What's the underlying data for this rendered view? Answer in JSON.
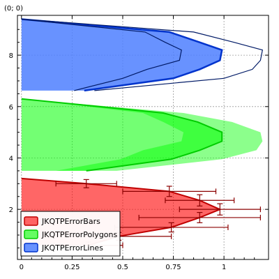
{
  "corner_label": "(0; 0)",
  "chart_data": {
    "type": "area",
    "title": "",
    "xlabel": "",
    "ylabel": "",
    "xlim": [
      -0.02,
      1.22
    ],
    "ylim": [
      0.05,
      9.55
    ],
    "grid": true,
    "legend_position": "bottom-left",
    "x_ticks": [
      0,
      0.25,
      0.5,
      0.75,
      1
    ],
    "x_tick_labels": [
      "0",
      "0.25",
      "0.5",
      "0.75",
      "1"
    ],
    "y_ticks": [
      2,
      4,
      6,
      8
    ],
    "y_tick_labels": [
      "2",
      "4",
      "6",
      "8"
    ],
    "series": [
      {
        "name": "JKQTPErrorBars",
        "color": "#ff0000",
        "offset": 0,
        "points": [
          {
            "y": 0.6,
            "x": 0.33,
            "err_x": 0.17,
            "err_y": 0.13
          },
          {
            "y": 0.95,
            "x": 0.48,
            "err_x": 0.26,
            "err_y": 0.15
          },
          {
            "y": 1.3,
            "x": 0.74,
            "err_x": 0.28,
            "err_y": 0.18
          },
          {
            "y": 1.68,
            "x": 0.88,
            "err_x": 0.3,
            "err_y": 0.2
          },
          {
            "y": 2.0,
            "x": 0.98,
            "err_x": 0.2,
            "err_y": 0.22
          },
          {
            "y": 2.35,
            "x": 0.88,
            "err_x": 0.17,
            "err_y": 0.22
          },
          {
            "y": 2.7,
            "x": 0.73,
            "err_x": 0.23,
            "err_y": 0.2
          },
          {
            "y": 3.0,
            "x": 0.32,
            "err_x": 0.15,
            "err_y": 0.16
          },
          {
            "y": 3.2,
            "x": 0.0,
            "err_x": 0.0,
            "err_y": 0.0
          }
        ]
      },
      {
        "name": "JKQTPErrorPolygons",
        "color": "#00ff00",
        "offset": 3.0,
        "points": [
          {
            "y": 3.5,
            "x": 0.32,
            "err_x": 0.15
          },
          {
            "y": 3.95,
            "x": 0.74,
            "err_x": 0.25
          },
          {
            "y": 4.3,
            "x": 0.88,
            "err_x": 0.28
          },
          {
            "y": 4.65,
            "x": 0.99,
            "err_x": 0.2
          },
          {
            "y": 5.0,
            "x": 0.99,
            "err_x": 0.19
          },
          {
            "y": 5.4,
            "x": 0.87,
            "err_x": 0.17
          },
          {
            "y": 5.75,
            "x": 0.7,
            "err_x": 0.1
          },
          {
            "y": 6.3,
            "x": 0.0,
            "err_x": 0.0
          }
        ]
      },
      {
        "name": "JKQTPErrorLines",
        "color": "#0000ff",
        "offset": 6.2,
        "points": [
          {
            "y": 6.62,
            "x": 0.31,
            "err_x": 0.05
          },
          {
            "y": 7.1,
            "x": 0.75,
            "err_x": 0.25
          },
          {
            "y": 7.45,
            "x": 0.88,
            "err_x": 0.26
          },
          {
            "y": 7.8,
            "x": 0.98,
            "err_x": 0.2
          },
          {
            "y": 8.2,
            "x": 0.99,
            "err_x": 0.2
          },
          {
            "y": 8.5,
            "x": 0.88,
            "err_x": 0.17
          },
          {
            "y": 8.9,
            "x": 0.73,
            "err_x": 0.12
          },
          {
            "y": 9.4,
            "x": 0.0,
            "err_x": 0.0
          }
        ]
      }
    ]
  }
}
